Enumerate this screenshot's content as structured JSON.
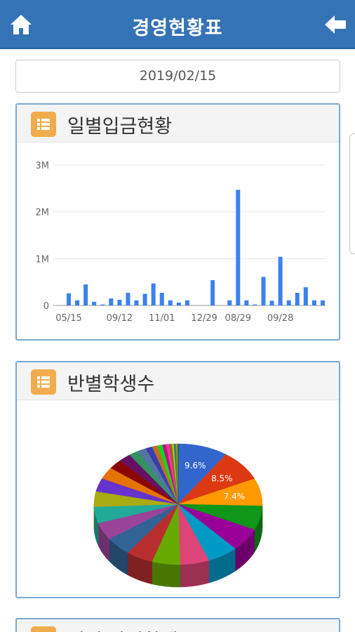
{
  "header": {
    "title": "경영현황표"
  },
  "date": {
    "value": "2019/02/15"
  },
  "panel1": {
    "title": "일별입금현황"
  },
  "panel2": {
    "title": "반별학생수"
  },
  "panel3": {
    "title": "일별 반별학생수"
  },
  "chart_data": [
    {
      "type": "bar",
      "ylim": [
        0,
        3000000
      ],
      "y_ticks": [
        "0",
        "1M",
        "2M",
        "3M"
      ],
      "x_tick_labels": [
        "05/15",
        "09/12",
        "11/01",
        "12/29",
        "08/29",
        "09/28"
      ],
      "color": "#3b82ec",
      "values": [
        260000,
        110000,
        450000,
        80000,
        20000,
        150000,
        120000,
        270000,
        110000,
        250000,
        470000,
        270000,
        110000,
        60000,
        110000,
        0,
        0,
        540000,
        0,
        110000,
        2470000,
        110000,
        20000,
        610000,
        100000,
        1040000,
        110000,
        270000,
        390000,
        110000,
        110000
      ]
    },
    {
      "type": "pie",
      "labels_shown": [
        "9.6%",
        "8.5%",
        "7.4%"
      ],
      "values": [
        9.6,
        8.5,
        7.4,
        6.5,
        6.2,
        5.9,
        5.6,
        5.4,
        5.2,
        5.0,
        4.7,
        4.4,
        4.1,
        3.6,
        3.2,
        2.7,
        2.3,
        1.9,
        1.6,
        1.3,
        1.1,
        0.9,
        0.7,
        0.6,
        0.5,
        0.4,
        0.3,
        0.2,
        0.2,
        0.1
      ],
      "colors": [
        "#3366cc",
        "#dc3912",
        "#ff9900",
        "#109618",
        "#990099",
        "#0099c6",
        "#dd4477",
        "#66aa00",
        "#b82e2e",
        "#316395",
        "#994499",
        "#22aa99",
        "#aaaa11",
        "#6633cc",
        "#e67300",
        "#8b0707",
        "#651067",
        "#329262",
        "#5574a6",
        "#3b3eac",
        "#b77322",
        "#16d620",
        "#b91383",
        "#f4359e",
        "#9c5935",
        "#a9c413",
        "#2a778d",
        "#668d1c",
        "#bea413",
        "#0c5922"
      ]
    }
  ]
}
